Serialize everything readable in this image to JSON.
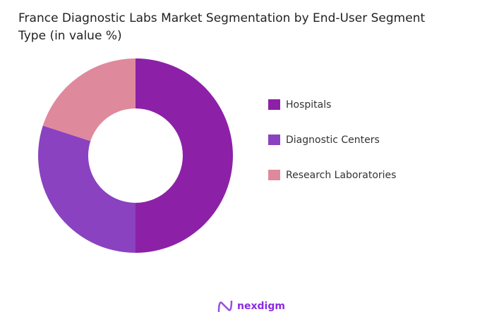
{
  "chart_data": {
    "type": "pie",
    "donut": true,
    "title": "France Diagnostic Labs Market Segmentation by End-User Segment Type (in value %)",
    "categories": [
      "Hospitals",
      "Diagnostic Centers",
      "Research Laboratories"
    ],
    "values": [
      50,
      30,
      20
    ],
    "colors": [
      "#8c21a8",
      "#8a42c0",
      "#df899d"
    ],
    "legend_position": "right"
  },
  "brand": {
    "name": "nexdigm"
  }
}
